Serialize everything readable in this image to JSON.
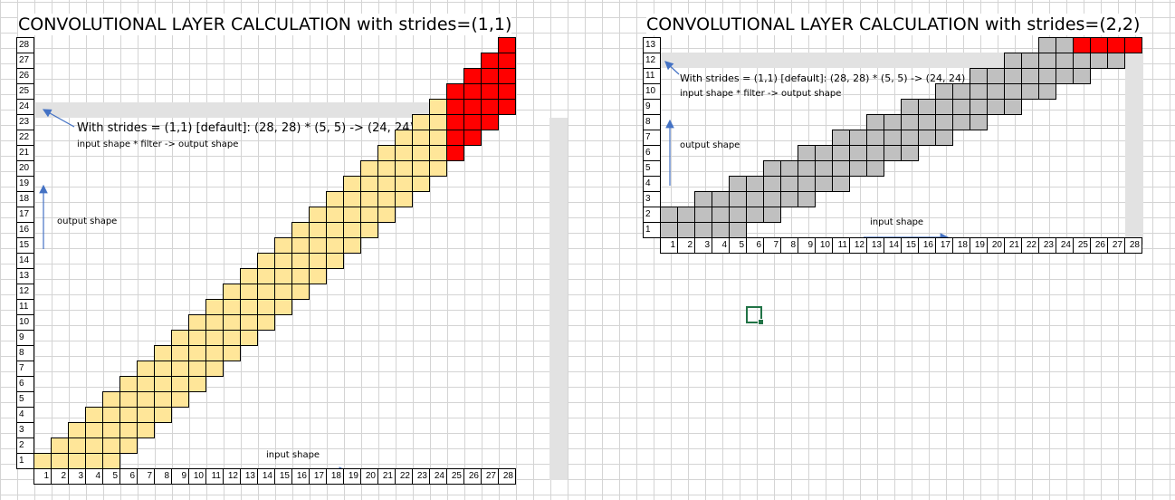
{
  "chart_data": [
    {
      "type": "table",
      "title": "CONVOLUTIONAL LAYER CALCULATION with strides=(1,1)",
      "x_axis": {
        "ticks": [
          1,
          2,
          3,
          4,
          5,
          6,
          7,
          8,
          9,
          10,
          11,
          12,
          13,
          14,
          15,
          16,
          17,
          18,
          19,
          20,
          21,
          22,
          23,
          24,
          25,
          26,
          27,
          28
        ]
      },
      "y_axis": {
        "ticks": [
          1,
          2,
          3,
          4,
          5,
          6,
          7,
          8,
          9,
          10,
          11,
          12,
          13,
          14,
          15,
          16,
          17,
          18,
          19,
          20,
          21,
          22,
          23,
          24,
          25,
          26,
          27,
          28
        ]
      },
      "filter_positions": [
        [
          1,
          1
        ],
        [
          2,
          2
        ],
        [
          3,
          3
        ],
        [
          4,
          4
        ],
        [
          5,
          5
        ],
        [
          6,
          6
        ],
        [
          7,
          7
        ],
        [
          8,
          8
        ],
        [
          9,
          9
        ],
        [
          10,
          10
        ],
        [
          11,
          11
        ],
        [
          12,
          12
        ],
        [
          13,
          13
        ],
        [
          14,
          14
        ],
        [
          15,
          15
        ],
        [
          16,
          16
        ],
        [
          17,
          17
        ],
        [
          18,
          18
        ],
        [
          19,
          19
        ],
        [
          20,
          20
        ],
        [
          21,
          21
        ],
        [
          22,
          22
        ],
        [
          23,
          23
        ],
        [
          24,
          24
        ]
      ],
      "filter_size": 5,
      "overflow_start": 25,
      "colors": {
        "filter": "#ffe699",
        "overflow": "#ff0000"
      },
      "annotation": "With strides = (1,1) [default]: (28, 28) * (5, 5) -> (24, 24)",
      "annotation_sub": "input shape * filter -> output shape",
      "y_note": "output shape",
      "x_note": "input shape"
    },
    {
      "type": "table",
      "title": "CONVOLUTIONAL LAYER CALCULATION with strides=(2,2)",
      "x_axis": {
        "ticks": [
          1,
          2,
          3,
          4,
          5,
          6,
          7,
          8,
          9,
          10,
          11,
          12,
          13,
          14,
          15,
          16,
          17,
          18,
          19,
          20,
          21,
          22,
          23,
          24,
          25,
          26,
          27,
          28
        ]
      },
      "y_axis": {
        "ticks": [
          1,
          2,
          3,
          4,
          5,
          6,
          7,
          8,
          9,
          10,
          11,
          12,
          13
        ]
      },
      "filter_positions": [
        [
          1,
          1
        ],
        [
          2,
          3
        ],
        [
          3,
          5
        ],
        [
          4,
          7
        ],
        [
          5,
          9
        ],
        [
          6,
          11
        ],
        [
          7,
          13
        ],
        [
          8,
          15
        ],
        [
          9,
          17
        ],
        [
          10,
          19
        ],
        [
          11,
          21
        ],
        [
          12,
          23
        ]
      ],
      "filter_height": 2,
      "filter_width": 5,
      "overflow": {
        "row": 13,
        "columns": [
          25,
          26,
          27,
          28
        ]
      },
      "colors": {
        "filter": "#c0c0c0",
        "overflow": "#ff0000"
      },
      "annotation": "With strides = (1,1) [default]: (28, 28) * (5, 5) -> (24, 24)",
      "annotation_sub": "input shape * filter -> output shape",
      "y_note": "output shape",
      "x_note": "input shape"
    }
  ]
}
